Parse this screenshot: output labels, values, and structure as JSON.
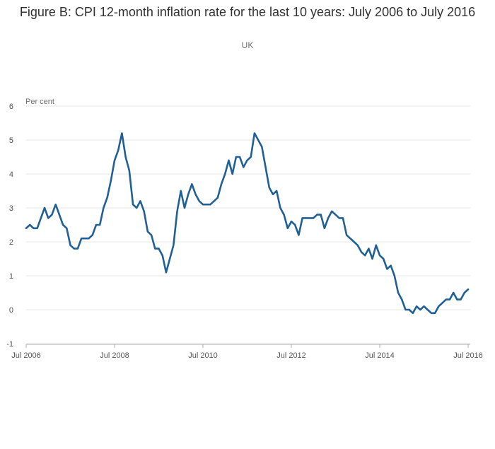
{
  "chart_data": {
    "type": "line",
    "title": "Figure B: CPI 12-month inflation rate for the last 10 years: July 2006 to July 2016",
    "subtitle": "UK",
    "ylabel": "Per cent",
    "xlabel": "",
    "ylim": [
      -1,
      6
    ],
    "yticks": [
      -1,
      0,
      1,
      2,
      3,
      4,
      5,
      6
    ],
    "xrange": [
      "2006-07",
      "2016-07"
    ],
    "xticks": [
      {
        "date": "2006-07",
        "label": "Jul 2006"
      },
      {
        "date": "2008-07",
        "label": "Jul 2008"
      },
      {
        "date": "2010-07",
        "label": "Jul 2010"
      },
      {
        "date": "2012-07",
        "label": "Jul 2012"
      },
      {
        "date": "2014-07",
        "label": "Jul 2014"
      },
      {
        "date": "2016-07",
        "label": "Jul 2016"
      }
    ],
    "grid": true,
    "line_color": "#206095",
    "series": [
      {
        "x": [
          "2006-07",
          "2006-08",
          "2006-09",
          "2006-10",
          "2006-11",
          "2006-12",
          "2007-01",
          "2007-02",
          "2007-03",
          "2007-04",
          "2007-05",
          "2007-06",
          "2007-07",
          "2007-08",
          "2007-09",
          "2007-10",
          "2007-11",
          "2007-12",
          "2008-01",
          "2008-02",
          "2008-03",
          "2008-04",
          "2008-05",
          "2008-06",
          "2008-07",
          "2008-08",
          "2008-09",
          "2008-10",
          "2008-11",
          "2008-12",
          "2009-01",
          "2009-02",
          "2009-03",
          "2009-04",
          "2009-05",
          "2009-06",
          "2009-07",
          "2009-08",
          "2009-09",
          "2009-10",
          "2009-11",
          "2009-12",
          "2010-01",
          "2010-02",
          "2010-03",
          "2010-04",
          "2010-05",
          "2010-06",
          "2010-07",
          "2010-08",
          "2010-09",
          "2010-10",
          "2010-11",
          "2010-12",
          "2011-01",
          "2011-02",
          "2011-03",
          "2011-04",
          "2011-05",
          "2011-06",
          "2011-07",
          "2011-08",
          "2011-09",
          "2011-10",
          "2011-11",
          "2011-12",
          "2012-01",
          "2012-02",
          "2012-03",
          "2012-04",
          "2012-05",
          "2012-06",
          "2012-07",
          "2012-08",
          "2012-09",
          "2012-10",
          "2012-11",
          "2012-12",
          "2013-01",
          "2013-02",
          "2013-03",
          "2013-04",
          "2013-05",
          "2013-06",
          "2013-07",
          "2013-08",
          "2013-09",
          "2013-10",
          "2013-11",
          "2013-12",
          "2014-01",
          "2014-02",
          "2014-03",
          "2014-04",
          "2014-05",
          "2014-06",
          "2014-07",
          "2014-08",
          "2014-09",
          "2014-10",
          "2014-11",
          "2014-12",
          "2015-01",
          "2015-02",
          "2015-03",
          "2015-04",
          "2015-05",
          "2015-06",
          "2015-07",
          "2015-08",
          "2015-09",
          "2015-10",
          "2015-11",
          "2015-12",
          "2016-01",
          "2016-02",
          "2016-03",
          "2016-04",
          "2016-05",
          "2016-06",
          "2016-07"
        ],
        "values": [
          2.4,
          2.5,
          2.4,
          2.4,
          2.7,
          3.0,
          2.7,
          2.8,
          3.1,
          2.8,
          2.5,
          2.4,
          1.9,
          1.8,
          1.8,
          2.1,
          2.1,
          2.1,
          2.2,
          2.5,
          2.5,
          3.0,
          3.3,
          3.8,
          4.4,
          4.7,
          5.2,
          4.5,
          4.1,
          3.1,
          3.0,
          3.2,
          2.9,
          2.3,
          2.2,
          1.8,
          1.8,
          1.6,
          1.1,
          1.5,
          1.9,
          2.9,
          3.5,
          3.0,
          3.4,
          3.7,
          3.4,
          3.2,
          3.1,
          3.1,
          3.1,
          3.2,
          3.3,
          3.7,
          4.0,
          4.4,
          4.0,
          4.5,
          4.5,
          4.2,
          4.4,
          4.5,
          5.2,
          5.0,
          4.8,
          4.2,
          3.6,
          3.4,
          3.5,
          3.0,
          2.8,
          2.4,
          2.6,
          2.5,
          2.2,
          2.7,
          2.7,
          2.7,
          2.7,
          2.8,
          2.8,
          2.4,
          2.7,
          2.9,
          2.8,
          2.7,
          2.7,
          2.2,
          2.1,
          2.0,
          1.9,
          1.7,
          1.6,
          1.8,
          1.5,
          1.9,
          1.6,
          1.5,
          1.2,
          1.3,
          1.0,
          0.5,
          0.3,
          0.0,
          0.0,
          -0.1,
          0.1,
          0.0,
          0.1,
          0.0,
          -0.1,
          -0.1,
          0.1,
          0.2,
          0.3,
          0.3,
          0.5,
          0.3,
          0.3,
          0.5,
          0.6
        ]
      }
    ]
  }
}
